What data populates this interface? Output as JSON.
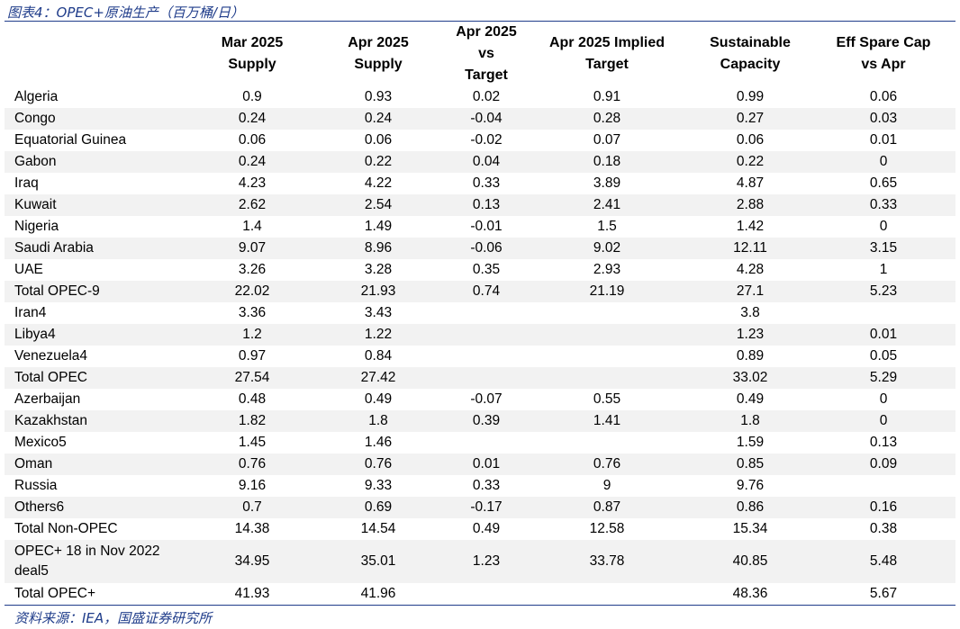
{
  "caption": "图表4：OPEC+原油生产（百万桶/日）",
  "source": "资料来源：IEA，国盛证券研究所",
  "table": {
    "headers": [
      "",
      "Mar 2025\nSupply",
      "Apr 2025\nSupply",
      "Apr 2025\nvs\nTarget",
      "Apr 2025 Implied\nTarget",
      "Sustainable\nCapacity",
      "Eff Spare Cap\nvs Apr"
    ],
    "rows": [
      {
        "name": "Algeria",
        "cells": [
          "0.9",
          "0.93",
          "0.02",
          "0.91",
          "0.99",
          "0.06"
        ]
      },
      {
        "name": "Congo",
        "cells": [
          "0.24",
          "0.24",
          "-0.04",
          "0.28",
          "0.27",
          "0.03"
        ]
      },
      {
        "name": "Equatorial Guinea",
        "cells": [
          "0.06",
          "0.06",
          "-0.02",
          "0.07",
          "0.06",
          "0.01"
        ]
      },
      {
        "name": "Gabon",
        "cells": [
          "0.24",
          "0.22",
          "0.04",
          "0.18",
          "0.22",
          "0"
        ]
      },
      {
        "name": "Iraq",
        "cells": [
          "4.23",
          "4.22",
          "0.33",
          "3.89",
          "4.87",
          "0.65"
        ]
      },
      {
        "name": "Kuwait",
        "cells": [
          "2.62",
          "2.54",
          "0.13",
          "2.41",
          "2.88",
          "0.33"
        ]
      },
      {
        "name": "Nigeria",
        "cells": [
          "1.4",
          "1.49",
          "-0.01",
          "1.5",
          "1.42",
          "0"
        ]
      },
      {
        "name": "Saudi Arabia",
        "cells": [
          "9.07",
          "8.96",
          "-0.06",
          "9.02",
          "12.11",
          "3.15"
        ]
      },
      {
        "name": "UAE",
        "cells": [
          "3.26",
          "3.28",
          "0.35",
          "2.93",
          "4.28",
          "1"
        ]
      },
      {
        "name": "Total OPEC-9",
        "cells": [
          "22.02",
          "21.93",
          "0.74",
          "21.19",
          "27.1",
          "5.23"
        ]
      },
      {
        "name": "Iran4",
        "cells": [
          "3.36",
          "3.43",
          "",
          "",
          "3.8",
          ""
        ]
      },
      {
        "name": "Libya4",
        "cells": [
          "1.2",
          "1.22",
          "",
          "",
          "1.23",
          "0.01"
        ]
      },
      {
        "name": "Venezuela4",
        "cells": [
          "0.97",
          "0.84",
          "",
          "",
          "0.89",
          "0.05"
        ]
      },
      {
        "name": "Total OPEC",
        "cells": [
          "27.54",
          "27.42",
          "",
          "",
          "33.02",
          "5.29"
        ]
      },
      {
        "name": "Azerbaijan",
        "cells": [
          "0.48",
          "0.49",
          "-0.07",
          "0.55",
          "0.49",
          "0"
        ]
      },
      {
        "name": "Kazakhstan",
        "cells": [
          "1.82",
          "1.8",
          "0.39",
          "1.41",
          "1.8",
          "0"
        ]
      },
      {
        "name": "Mexico5",
        "cells": [
          "1.45",
          "1.46",
          "",
          "",
          "1.59",
          "0.13"
        ]
      },
      {
        "name": "Oman",
        "cells": [
          "0.76",
          "0.76",
          "0.01",
          "0.76",
          "0.85",
          "0.09"
        ]
      },
      {
        "name": "Russia",
        "cells": [
          "9.16",
          "9.33",
          "0.33",
          "9",
          "9.76",
          ""
        ]
      },
      {
        "name": "Others6",
        "cells": [
          "0.7",
          "0.69",
          "-0.17",
          "0.87",
          "0.86",
          "0.16"
        ]
      },
      {
        "name": "Total Non-OPEC",
        "cells": [
          "14.38",
          "14.54",
          "0.49",
          "12.58",
          "15.34",
          "0.38"
        ]
      },
      {
        "name": "OPEC+ 18 in Nov 2022 deal5",
        "cells": [
          "34.95",
          "35.01",
          "1.23",
          "33.78",
          "40.85",
          "5.48"
        ]
      },
      {
        "name": "Total OPEC+",
        "cells": [
          "41.93",
          "41.96",
          "",
          "",
          "48.36",
          "5.67"
        ]
      }
    ]
  }
}
